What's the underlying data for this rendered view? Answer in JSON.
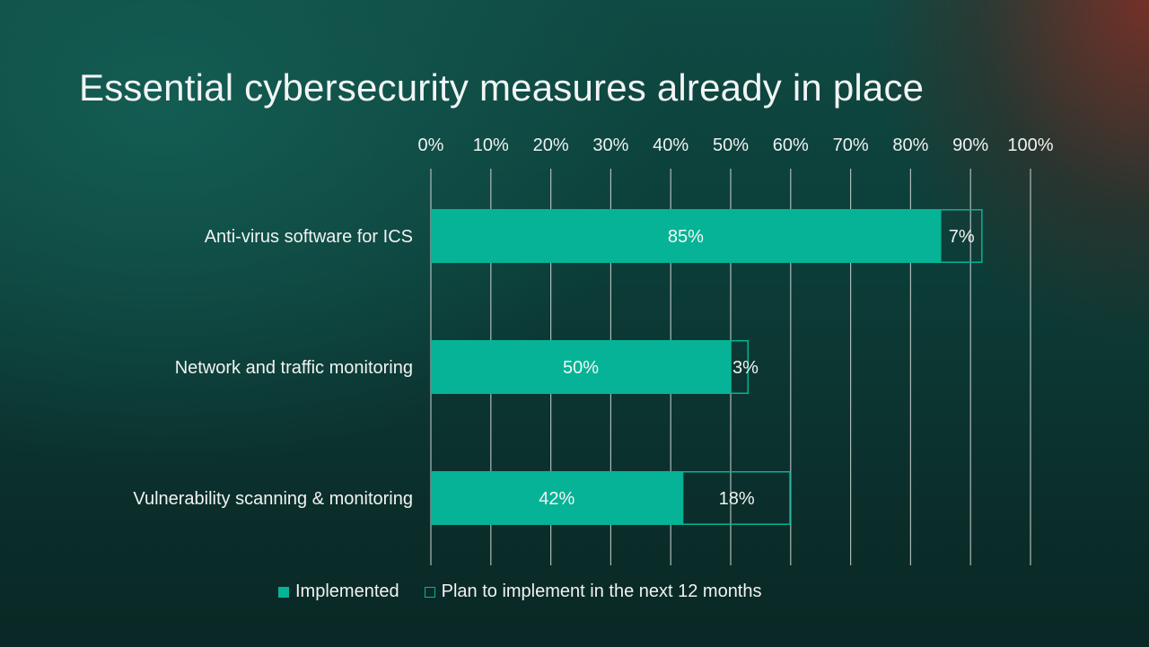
{
  "title": "Essential cybersecurity measures already in place",
  "colors": {
    "implemented": "#06b396",
    "planned_outline": "#06b396",
    "text": "#f0f3f2",
    "gridline": "#c9d2d0"
  },
  "chart_data": {
    "type": "bar",
    "orientation": "horizontal",
    "stacked": true,
    "categories": [
      "Anti-virus software for ICS",
      "Network and traffic monitoring",
      "Vulnerability scanning & monitoring"
    ],
    "series": [
      {
        "name": "Implemented",
        "values": [
          85,
          50,
          42
        ],
        "labels": [
          "85%",
          "50%",
          "42%"
        ],
        "style": "filled"
      },
      {
        "name": "Plan to implement in the next 12 months",
        "values": [
          7,
          3,
          18
        ],
        "labels": [
          "7%",
          "3%",
          "18%"
        ],
        "style": "outline"
      }
    ],
    "xlim": [
      0,
      100
    ],
    "xticks": [
      0,
      10,
      20,
      30,
      40,
      50,
      60,
      70,
      80,
      90,
      100
    ],
    "xtick_labels": [
      "0%",
      "10%",
      "20%",
      "30%",
      "40%",
      "50%",
      "60%",
      "70%",
      "80%",
      "90%",
      "100%"
    ],
    "x_axis_position": "top",
    "grid": true,
    "legend_position": "bottom"
  }
}
